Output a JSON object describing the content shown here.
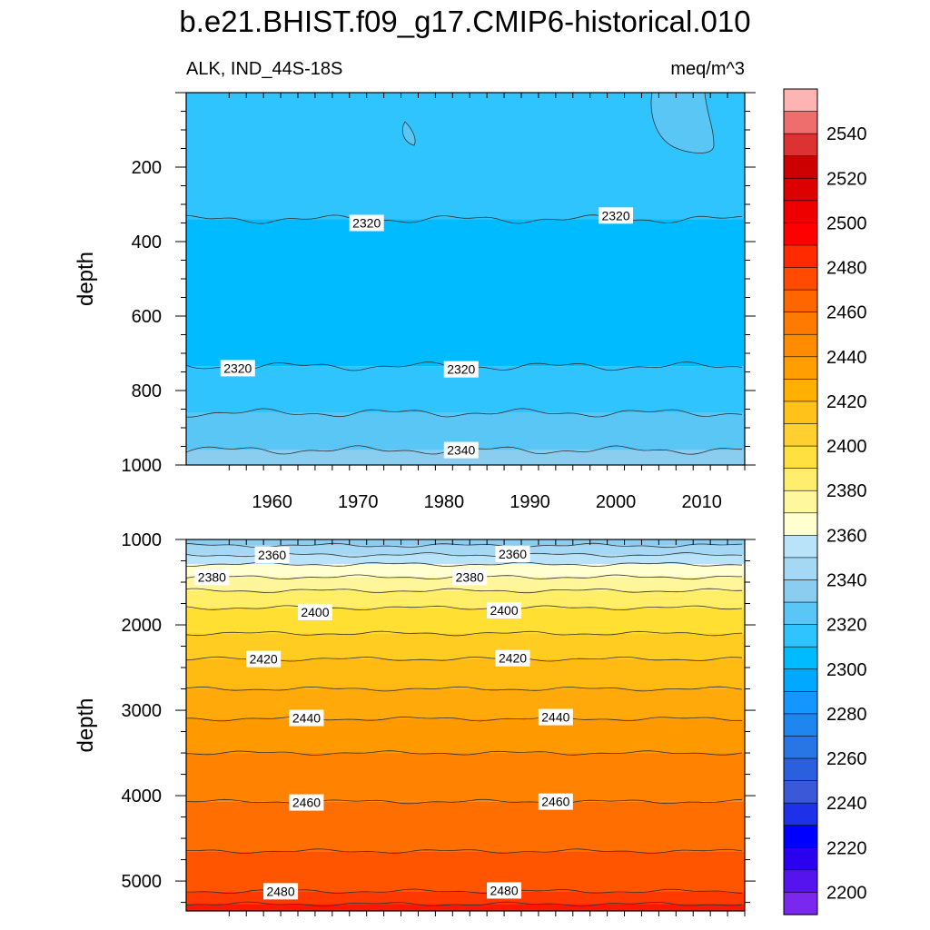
{
  "chart_data": {
    "type": "contour",
    "title": "b.e21.BHIST.f09_g17.CMIP6-historical.010",
    "subtitle_left": "ALK, IND_44S-18S",
    "subtitle_right": "meq/m^3",
    "x_range": [
      1950,
      2015
    ],
    "x_ticks": [
      "1960",
      "1970",
      "1980",
      "1990",
      "2000",
      "2010"
    ],
    "x_tick_values": [
      1960,
      1970,
      1980,
      1990,
      2000,
      2010
    ],
    "panels": [
      {
        "name": "upper",
        "ylabel": "depth",
        "ylim": [
          0,
          1000
        ],
        "y_ticks": [
          "200",
          "400",
          "600",
          "800",
          "1000"
        ],
        "y_tick_values": [
          200,
          400,
          600,
          800,
          1000
        ],
        "bands": [
          {
            "top": 0,
            "bottom": 340,
            "color": "#30c4ff"
          },
          {
            "top": 340,
            "bottom": 735,
            "color": "#00bbff"
          },
          {
            "top": 735,
            "bottom": 860,
            "color": "#30c4ff"
          },
          {
            "top": 860,
            "bottom": 960,
            "color": "#5ac6f5"
          },
          {
            "top": 960,
            "bottom": 1000,
            "color": "#8bcdf0"
          }
        ],
        "contour_labels": [
          {
            "text": "2320",
            "x": 1971,
            "y": 350
          },
          {
            "text": "2320",
            "x": 2000,
            "y": 330
          },
          {
            "text": "2320",
            "x": 1956,
            "y": 740
          },
          {
            "text": "2320",
            "x": 1982,
            "y": 743
          },
          {
            "text": "2340",
            "x": 1982,
            "y": 960
          }
        ]
      },
      {
        "name": "lower",
        "ylabel": "depth",
        "ylim": [
          1000,
          5350
        ],
        "y_ticks": [
          "1000",
          "2000",
          "3000",
          "4000",
          "5000"
        ],
        "y_tick_values": [
          1000,
          2000,
          3000,
          4000,
          5000
        ],
        "bands": [
          {
            "top": 1000,
            "bottom": 1070,
            "color": "#8bcdf0"
          },
          {
            "top": 1070,
            "bottom": 1180,
            "color": "#a5d8f5"
          },
          {
            "top": 1180,
            "bottom": 1290,
            "color": "#b8e3f8"
          },
          {
            "top": 1290,
            "bottom": 1440,
            "color": "#ffffd0"
          },
          {
            "top": 1440,
            "bottom": 1600,
            "color": "#fff59a"
          },
          {
            "top": 1600,
            "bottom": 1800,
            "color": "#ffee66"
          },
          {
            "top": 1800,
            "bottom": 2100,
            "color": "#ffe032"
          },
          {
            "top": 2100,
            "bottom": 2400,
            "color": "#ffcc22"
          },
          {
            "top": 2400,
            "bottom": 2750,
            "color": "#ffbb12"
          },
          {
            "top": 2750,
            "bottom": 3100,
            "color": "#ffa90a"
          },
          {
            "top": 3100,
            "bottom": 3500,
            "color": "#ff9900"
          },
          {
            "top": 3500,
            "bottom": 4070,
            "color": "#ff8200"
          },
          {
            "top": 4070,
            "bottom": 4650,
            "color": "#ff6e00"
          },
          {
            "top": 4650,
            "bottom": 5120,
            "color": "#ff5500"
          },
          {
            "top": 5120,
            "bottom": 5270,
            "color": "#ff3a00"
          },
          {
            "top": 5270,
            "bottom": 5350,
            "color": "#ff1800"
          }
        ],
        "contour_labels": [
          {
            "text": "2360",
            "x": 1960,
            "y": 1180
          },
          {
            "text": "2360",
            "x": 1988,
            "y": 1170
          },
          {
            "text": "2380",
            "x": 1953,
            "y": 1440
          },
          {
            "text": "2380",
            "x": 1983,
            "y": 1440
          },
          {
            "text": "2400",
            "x": 1965,
            "y": 1850
          },
          {
            "text": "2400",
            "x": 1987,
            "y": 1830
          },
          {
            "text": "2420",
            "x": 1959,
            "y": 2400
          },
          {
            "text": "2420",
            "x": 1988,
            "y": 2390
          },
          {
            "text": "2440",
            "x": 1964,
            "y": 3090
          },
          {
            "text": "2440",
            "x": 1993,
            "y": 3080
          },
          {
            "text": "2460",
            "x": 1964,
            "y": 4080
          },
          {
            "text": "2460",
            "x": 1993,
            "y": 4070
          },
          {
            "text": "2480",
            "x": 1961,
            "y": 5120
          },
          {
            "text": "2480",
            "x": 1987,
            "y": 5110
          }
        ]
      }
    ],
    "colorbar": {
      "labels": [
        "2540",
        "2520",
        "2500",
        "2480",
        "2460",
        "2440",
        "2420",
        "2400",
        "2380",
        "2360",
        "2340",
        "2320",
        "2300",
        "2280",
        "2260",
        "2240",
        "2220",
        "2200"
      ],
      "colors": [
        "#ffb4b4",
        "#ee6e6e",
        "#dd3232",
        "#cc0000",
        "#dd0000",
        "#ee0000",
        "#ff0000",
        "#ff2a00",
        "#ff4a00",
        "#ff6600",
        "#ff7a00",
        "#ff8c00",
        "#ff9e00",
        "#ffb000",
        "#ffc21a",
        "#ffd030",
        "#ffe040",
        "#ffee6e",
        "#fff79e",
        "#ffffd0",
        "#b8e3f8",
        "#a5d8f5",
        "#8bcdf0",
        "#5ac6f5",
        "#30c4ff",
        "#00bbff",
        "#00a8ff",
        "#1496ff",
        "#1e86ee",
        "#2876e6",
        "#2a60dd",
        "#3a58d8",
        "#1e30e8",
        "#0000ff",
        "#2a00ee",
        "#5514ee",
        "#7a28ee"
      ]
    }
  }
}
